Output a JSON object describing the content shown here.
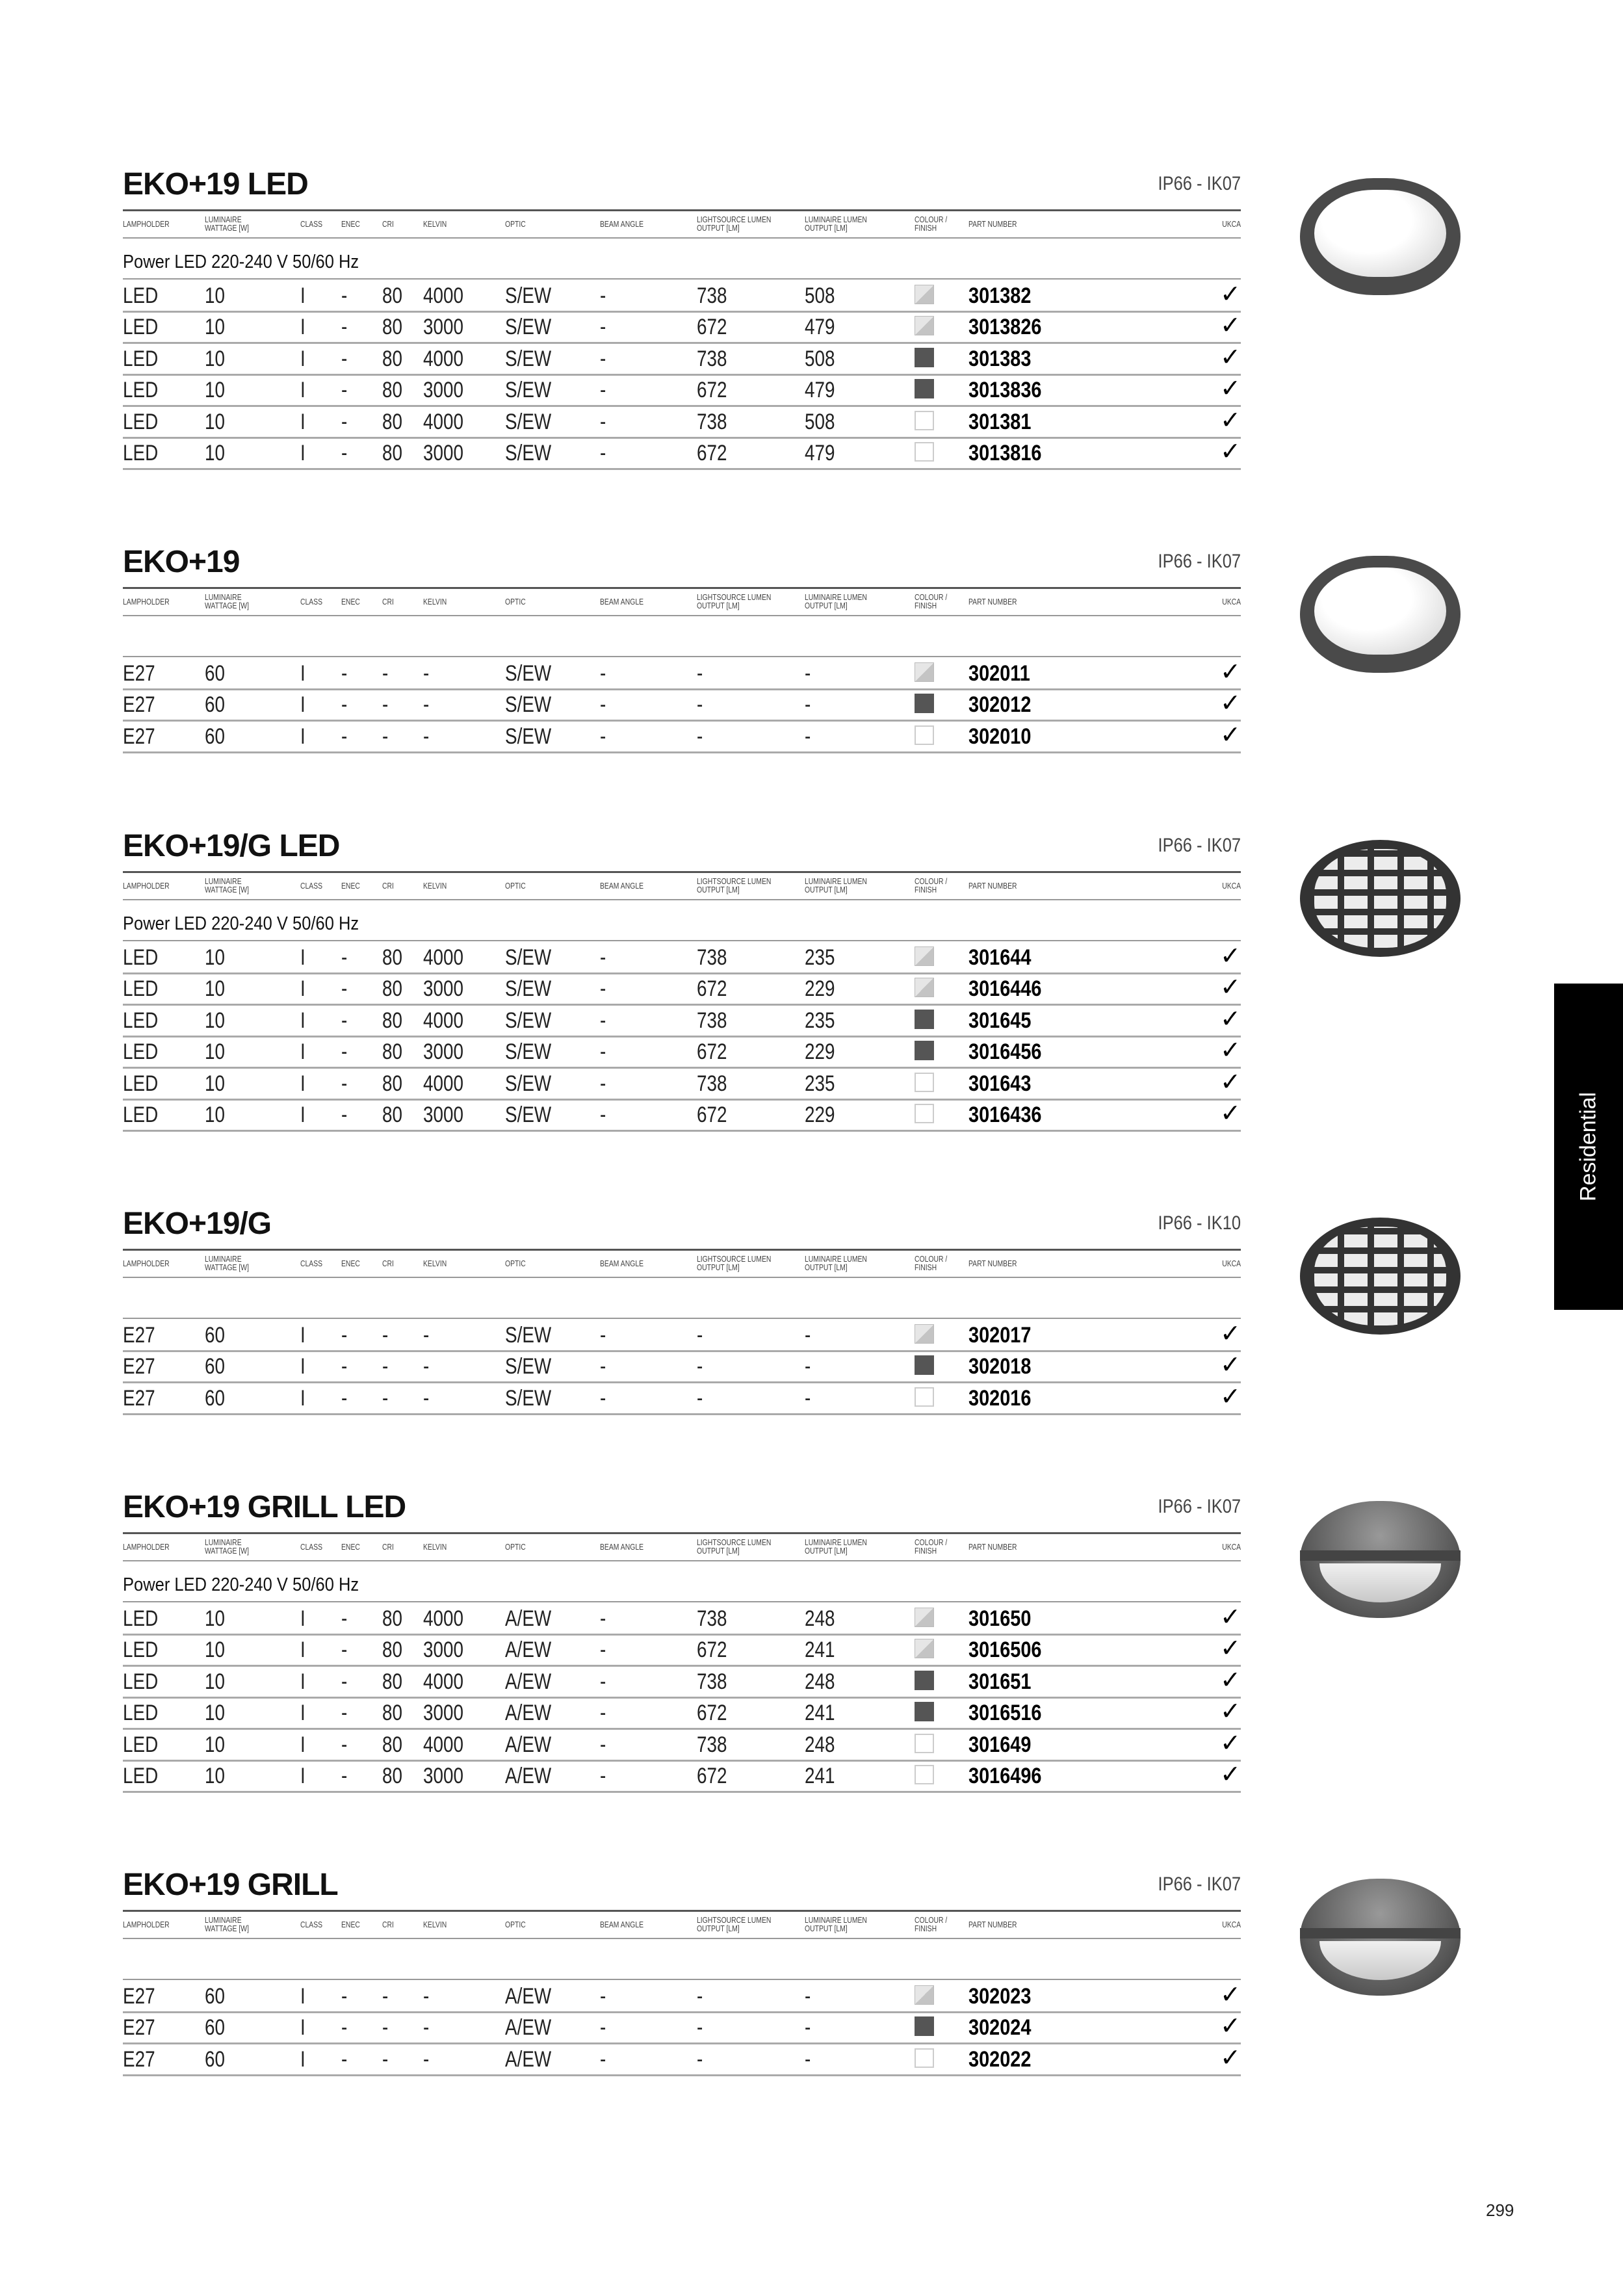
{
  "columns": [
    "LAMPHOLDER",
    "LUMINAIRE WATTAGE [W]",
    "CLASS",
    "ENEC",
    "CRI",
    "KELVIN",
    "OPTIC",
    "BEAM ANGLE",
    "LIGHTSOURCE LUMEN OUTPUT [lm]",
    "LUMINAIRE LUMEN OUTPUT [lm]",
    "COLOUR / FINISH",
    "PART NUMBER",
    "UKCA"
  ],
  "column_lines": [
    [
      "LAMPHOLDER"
    ],
    [
      "LUMINAIRE",
      "WATTAGE [W]"
    ],
    [
      "CLASS"
    ],
    [
      "ENEC"
    ],
    [
      "CRI"
    ],
    [
      "KELVIN"
    ],
    [
      "OPTIC"
    ],
    [
      "BEAM ANGLE"
    ],
    [
      "LIGHTSOURCE LUMEN",
      "OUTPUT [lm]"
    ],
    [
      "LUMINAIRE LUMEN",
      "OUTPUT [lm]"
    ],
    [
      "COLOUR /",
      "FINISH"
    ],
    [
      "PART NUMBER"
    ],
    [
      "UKCA"
    ]
  ],
  "swatch_colors": {
    "light": "#d6d6d6",
    "dark": "#555555",
    "white": "#ffffff"
  },
  "check_mark": "✓",
  "sections": [
    {
      "title": "EKO+19 LED",
      "rating": "IP66 - IK07",
      "subtitle": "Power LED 220-240 V 50/60 Hz",
      "image": "oval-opal-icon",
      "rows": [
        [
          "LED",
          "10",
          "I",
          "-",
          "80",
          "4000",
          "S/EW",
          "-",
          "738",
          "508",
          "light",
          "301382"
        ],
        [
          "LED",
          "10",
          "I",
          "-",
          "80",
          "3000",
          "S/EW",
          "-",
          "672",
          "479",
          "light",
          "3013826"
        ],
        [
          "LED",
          "10",
          "I",
          "-",
          "80",
          "4000",
          "S/EW",
          "-",
          "738",
          "508",
          "dark",
          "301383"
        ],
        [
          "LED",
          "10",
          "I",
          "-",
          "80",
          "3000",
          "S/EW",
          "-",
          "672",
          "479",
          "dark",
          "3013836"
        ],
        [
          "LED",
          "10",
          "I",
          "-",
          "80",
          "4000",
          "S/EW",
          "-",
          "738",
          "508",
          "white",
          "301381"
        ],
        [
          "LED",
          "10",
          "I",
          "-",
          "80",
          "3000",
          "S/EW",
          "-",
          "672",
          "479",
          "white",
          "3013816"
        ]
      ]
    },
    {
      "title": "EKO+19",
      "rating": "IP66 - IK07",
      "subtitle": "",
      "image": "oval-opal-icon",
      "rows": [
        [
          "E27",
          "60",
          "I",
          "-",
          "-",
          "-",
          "S/EW",
          "-",
          "-",
          "-",
          "light",
          "302011"
        ],
        [
          "E27",
          "60",
          "I",
          "-",
          "-",
          "-",
          "S/EW",
          "-",
          "-",
          "-",
          "dark",
          "302012"
        ],
        [
          "E27",
          "60",
          "I",
          "-",
          "-",
          "-",
          "S/EW",
          "-",
          "-",
          "-",
          "white",
          "302010"
        ]
      ]
    },
    {
      "title": "EKO+19/G LED",
      "rating": "IP66 - IK07",
      "subtitle": "Power LED 220-240 V 50/60 Hz",
      "image": "oval-grid-icon",
      "rows": [
        [
          "LED",
          "10",
          "I",
          "-",
          "80",
          "4000",
          "S/EW",
          "-",
          "738",
          "235",
          "light",
          "301644"
        ],
        [
          "LED",
          "10",
          "I",
          "-",
          "80",
          "3000",
          "S/EW",
          "-",
          "672",
          "229",
          "light",
          "3016446"
        ],
        [
          "LED",
          "10",
          "I",
          "-",
          "80",
          "4000",
          "S/EW",
          "-",
          "738",
          "235",
          "dark",
          "301645"
        ],
        [
          "LED",
          "10",
          "I",
          "-",
          "80",
          "3000",
          "S/EW",
          "-",
          "672",
          "229",
          "dark",
          "3016456"
        ],
        [
          "LED",
          "10",
          "I",
          "-",
          "80",
          "4000",
          "S/EW",
          "-",
          "738",
          "235",
          "white",
          "301643"
        ],
        [
          "LED",
          "10",
          "I",
          "-",
          "80",
          "3000",
          "S/EW",
          "-",
          "672",
          "229",
          "white",
          "3016436"
        ]
      ]
    },
    {
      "title": "EKO+19/G",
      "rating": "IP66 - IK10",
      "subtitle": "",
      "image": "oval-grid-icon",
      "rows": [
        [
          "E27",
          "60",
          "I",
          "-",
          "-",
          "-",
          "S/EW",
          "-",
          "-",
          "-",
          "light",
          "302017"
        ],
        [
          "E27",
          "60",
          "I",
          "-",
          "-",
          "-",
          "S/EW",
          "-",
          "-",
          "-",
          "dark",
          "302018"
        ],
        [
          "E27",
          "60",
          "I",
          "-",
          "-",
          "-",
          "S/EW",
          "-",
          "-",
          "-",
          "white",
          "302016"
        ]
      ]
    },
    {
      "title": "EKO+19 GRILL LED",
      "rating": "IP66 - IK07",
      "subtitle": "Power LED 220-240 V 50/60 Hz",
      "image": "oval-half-grill-icon",
      "rows": [
        [
          "LED",
          "10",
          "I",
          "-",
          "80",
          "4000",
          "A/EW",
          "-",
          "738",
          "248",
          "light",
          "301650"
        ],
        [
          "LED",
          "10",
          "I",
          "-",
          "80",
          "3000",
          "A/EW",
          "-",
          "672",
          "241",
          "light",
          "3016506"
        ],
        [
          "LED",
          "10",
          "I",
          "-",
          "80",
          "4000",
          "A/EW",
          "-",
          "738",
          "248",
          "dark",
          "301651"
        ],
        [
          "LED",
          "10",
          "I",
          "-",
          "80",
          "3000",
          "A/EW",
          "-",
          "672",
          "241",
          "dark",
          "3016516"
        ],
        [
          "LED",
          "10",
          "I",
          "-",
          "80",
          "4000",
          "A/EW",
          "-",
          "738",
          "248",
          "white",
          "301649"
        ],
        [
          "LED",
          "10",
          "I",
          "-",
          "80",
          "3000",
          "A/EW",
          "-",
          "672",
          "241",
          "white",
          "3016496"
        ]
      ]
    },
    {
      "title": "EKO+19 GRILL",
      "rating": "IP66 - IK07",
      "subtitle": "",
      "image": "oval-half-grill-icon",
      "rows": [
        [
          "E27",
          "60",
          "I",
          "-",
          "-",
          "-",
          "A/EW",
          "-",
          "-",
          "-",
          "light",
          "302023"
        ],
        [
          "E27",
          "60",
          "I",
          "-",
          "-",
          "-",
          "A/EW",
          "-",
          "-",
          "-",
          "dark",
          "302024"
        ],
        [
          "E27",
          "60",
          "I",
          "-",
          "-",
          "-",
          "A/EW",
          "-",
          "-",
          "-",
          "white",
          "302022"
        ]
      ]
    }
  ],
  "side_tab": "Residential",
  "page_number": "299"
}
